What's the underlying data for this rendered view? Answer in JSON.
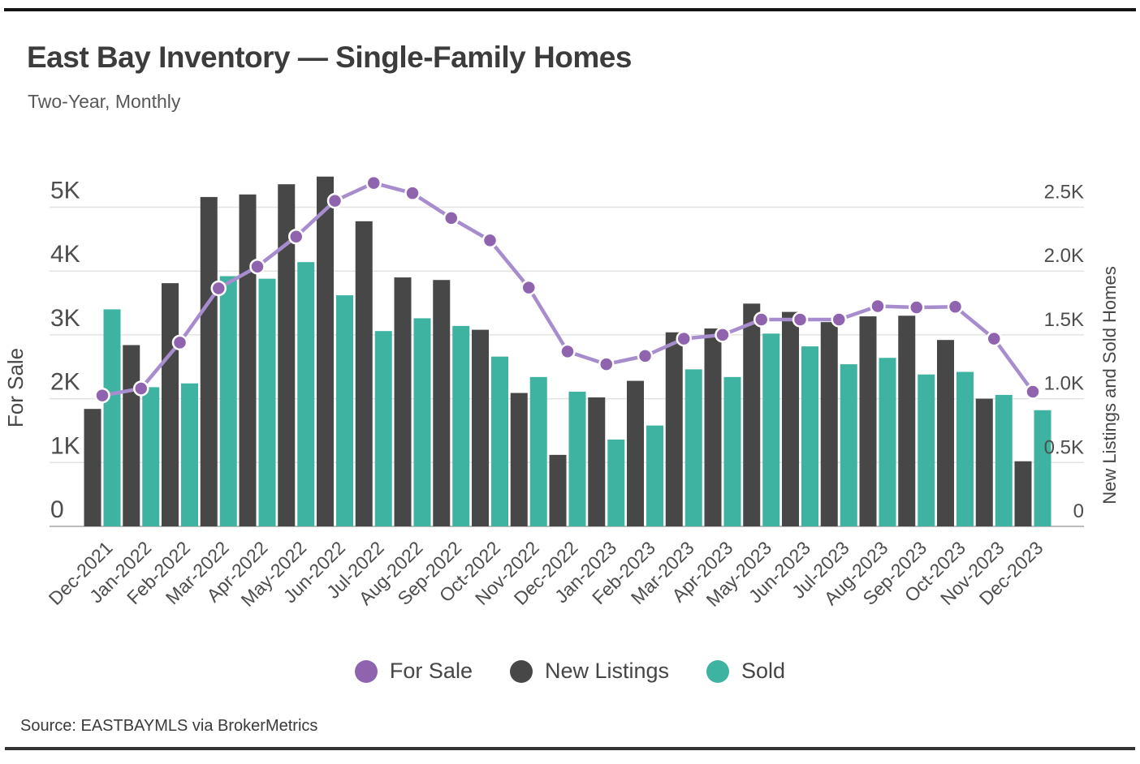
{
  "page": {
    "title": "East Bay Inventory — Single-Family Homes",
    "subtitle": "Two-Year, Monthly",
    "source": "Source:  EASTBAYMLS via BrokerMetrics"
  },
  "chart_data": {
    "type": "bar+line",
    "title": "East Bay Inventory — Single-Family Homes",
    "subtitle": "Two-Year, Monthly",
    "grid": true,
    "legend_position": "bottom",
    "categories": [
      "Dec-2021",
      "Jan-2022",
      "Feb-2022",
      "Mar-2022",
      "Apr-2022",
      "May-2022",
      "Jun-2022",
      "Jul-2022",
      "Aug-2022",
      "Sep-2022",
      "Oct-2022",
      "Nov-2022",
      "Dec-2022",
      "Jan-2023",
      "Feb-2023",
      "Mar-2023",
      "Apr-2023",
      "May-2023",
      "Jun-2023",
      "Jul-2023",
      "Aug-2023",
      "Sep-2023",
      "Oct-2023",
      "Nov-2023",
      "Dec-2023"
    ],
    "left_axis": {
      "label": "For Sale",
      "range": [
        0,
        5000
      ],
      "ticks": [
        "5K",
        "4K",
        "3K",
        "2K",
        "1K",
        "0"
      ],
      "tick_values": [
        5000,
        4000,
        3000,
        2000,
        1000,
        0
      ]
    },
    "right_axis": {
      "label": "New Listings and Sold Homes",
      "range": [
        0,
        2500
      ],
      "ticks": [
        "2.5K",
        "2.0K",
        "1.5K",
        "1.0K",
        "0.5K",
        "0"
      ],
      "tick_values": [
        2500,
        2000,
        1500,
        1000,
        500,
        0
      ]
    },
    "series": [
      {
        "name": "For Sale",
        "type": "line",
        "axis": "left",
        "color": "#8f63ae",
        "line_color": "#a88dce",
        "values": [
          2050,
          2160,
          2880,
          3730,
          4070,
          4540,
          5100,
          5380,
          5220,
          4830,
          4480,
          3740,
          2740,
          2540,
          2670,
          2940,
          3000,
          3240,
          3240,
          3240,
          3450,
          3430,
          3440,
          2940,
          2110
        ]
      },
      {
        "name": "New Listings",
        "type": "bar",
        "axis": "right",
        "color": "#474747",
        "values": [
          920,
          1420,
          1905,
          2580,
          2600,
          2680,
          2740,
          2390,
          1950,
          1930,
          1540,
          1045,
          560,
          1010,
          1140,
          1520,
          1550,
          1745,
          1680,
          1600,
          1645,
          1650,
          1460,
          1000,
          510
        ]
      },
      {
        "name": "Sold",
        "type": "bar",
        "axis": "right",
        "color": "#3eb3a2",
        "values": [
          1700,
          1090,
          1120,
          1960,
          1940,
          2070,
          1810,
          1530,
          1630,
          1570,
          1330,
          1170,
          1055,
          680,
          790,
          1230,
          1170,
          1510,
          1410,
          1270,
          1320,
          1190,
          1210,
          1030,
          910
        ]
      }
    ],
    "colors": {
      "grid_line": "#e3e3e3",
      "axis_line": "#bcbcbc",
      "tick_text": "#4d4d4d"
    }
  }
}
